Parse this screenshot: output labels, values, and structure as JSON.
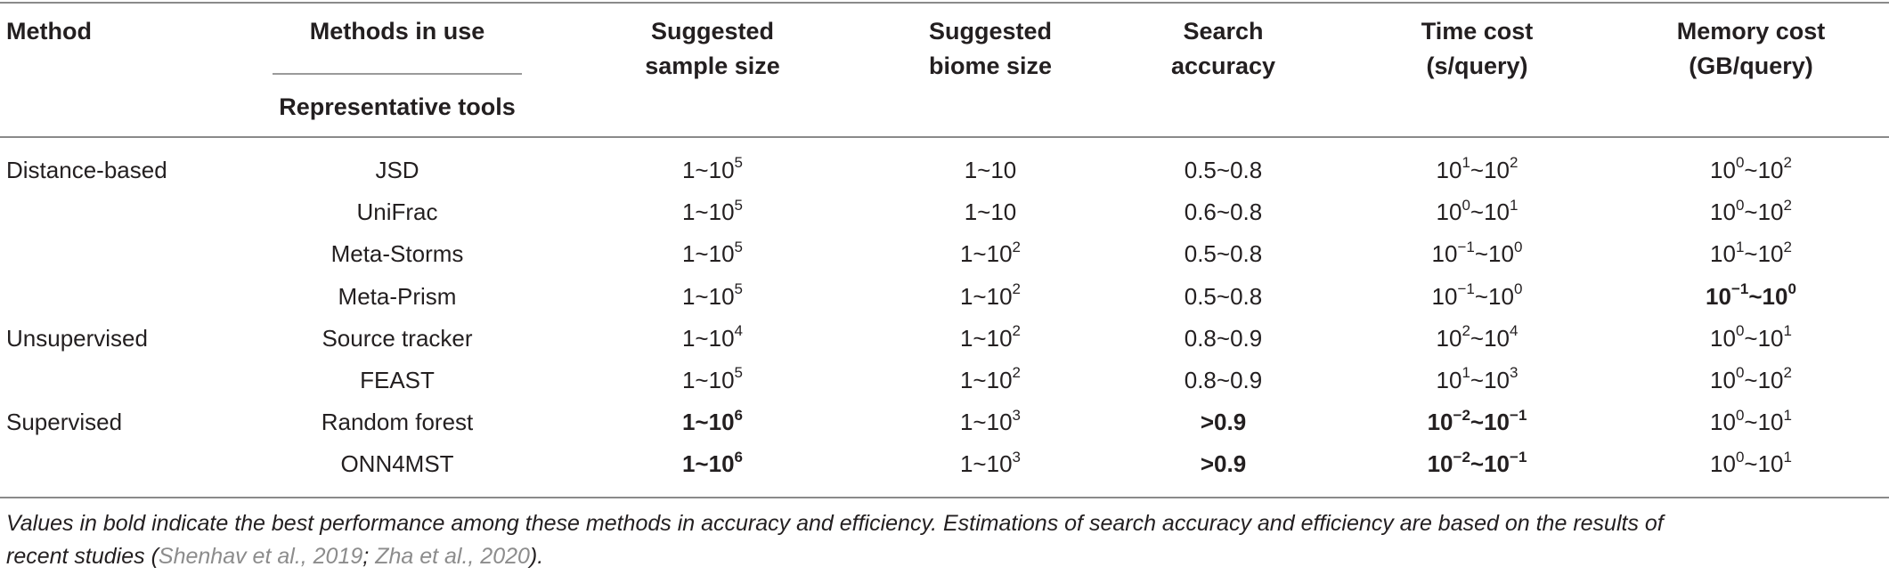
{
  "header": {
    "method": "Method",
    "methods_in_use": "Methods in use",
    "representative_tools": "Representative tools",
    "sample_size_l1": "Suggested",
    "sample_size_l2": "sample size",
    "biome_size_l1": "Suggested",
    "biome_size_l2": "biome size",
    "accuracy_l1": "Search",
    "accuracy_l2": "accuracy",
    "time_l1": "Time cost",
    "time_l2": "(s/query)",
    "memory_l1": "Memory cost",
    "memory_l2": "(GB/query)"
  },
  "rows": [
    {
      "method": "Distance-based",
      "tool": "JSD",
      "sample": {
        "b": "1~10",
        "e": "5",
        "bold": false
      },
      "biome": {
        "b": "1~10",
        "e": "",
        "bold": false
      },
      "accuracy": {
        "text": "0.5~0.8",
        "bold": false
      },
      "time": {
        "a": "10",
        "ae": "1",
        "b": "~10",
        "be": "2",
        "bold": false
      },
      "memory": {
        "a": "10",
        "ae": "0",
        "b": "~10",
        "be": "2",
        "bold": false
      }
    },
    {
      "method": "",
      "tool": "UniFrac",
      "sample": {
        "b": "1~10",
        "e": "5",
        "bold": false
      },
      "biome": {
        "b": "1~10",
        "e": "",
        "bold": false
      },
      "accuracy": {
        "text": "0.6~0.8",
        "bold": false
      },
      "time": {
        "a": "10",
        "ae": "0",
        "b": "~10",
        "be": "1",
        "bold": false
      },
      "memory": {
        "a": "10",
        "ae": "0",
        "b": "~10",
        "be": "2",
        "bold": false
      }
    },
    {
      "method": "",
      "tool": "Meta-Storms",
      "sample": {
        "b": "1~10",
        "e": "5",
        "bold": false
      },
      "biome": {
        "b": "1~10",
        "e": "2",
        "bold": false
      },
      "accuracy": {
        "text": "0.5~0.8",
        "bold": false
      },
      "time": {
        "a": "10",
        "ae": "−1",
        "b": "~10",
        "be": "0",
        "bold": false
      },
      "memory": {
        "a": "10",
        "ae": "1",
        "b": "~10",
        "be": "2",
        "bold": false
      }
    },
    {
      "method": "",
      "tool": "Meta-Prism",
      "sample": {
        "b": "1~10",
        "e": "5",
        "bold": false
      },
      "biome": {
        "b": "1~10",
        "e": "2",
        "bold": false
      },
      "accuracy": {
        "text": "0.5~0.8",
        "bold": false
      },
      "time": {
        "a": "10",
        "ae": "−1",
        "b": "~10",
        "be": "0",
        "bold": false
      },
      "memory": {
        "a": "10",
        "ae": "−1",
        "b": "~10",
        "be": "0",
        "bold": true
      }
    },
    {
      "method": "Unsupervised",
      "tool": "Source tracker",
      "sample": {
        "b": "1~10",
        "e": "4",
        "bold": false
      },
      "biome": {
        "b": "1~10",
        "e": "2",
        "bold": false
      },
      "accuracy": {
        "text": "0.8~0.9",
        "bold": false
      },
      "time": {
        "a": "10",
        "ae": "2",
        "b": "~10",
        "be": "4",
        "bold": false
      },
      "memory": {
        "a": "10",
        "ae": "0",
        "b": "~10",
        "be": "1",
        "bold": false
      }
    },
    {
      "method": "",
      "tool": "FEAST",
      "sample": {
        "b": "1~10",
        "e": "5",
        "bold": false
      },
      "biome": {
        "b": "1~10",
        "e": "2",
        "bold": false
      },
      "accuracy": {
        "text": "0.8~0.9",
        "bold": false
      },
      "time": {
        "a": "10",
        "ae": "1",
        "b": "~10",
        "be": "3",
        "bold": false
      },
      "memory": {
        "a": "10",
        "ae": "0",
        "b": "~10",
        "be": "2",
        "bold": false
      }
    },
    {
      "method": "Supervised",
      "tool": "Random forest",
      "sample": {
        "b": "1~10",
        "e": "6",
        "bold": true
      },
      "biome": {
        "b": "1~10",
        "e": "3",
        "bold": false
      },
      "accuracy": {
        "text": ">0.9",
        "bold": true
      },
      "time": {
        "a": "10",
        "ae": "−2",
        "b": "~10",
        "be": "−1",
        "bold": true
      },
      "memory": {
        "a": "10",
        "ae": "0",
        "b": "~10",
        "be": "1",
        "bold": false
      }
    },
    {
      "method": "",
      "tool": "ONN4MST",
      "sample": {
        "b": "1~10",
        "e": "6",
        "bold": true
      },
      "biome": {
        "b": "1~10",
        "e": "3",
        "bold": false
      },
      "accuracy": {
        "text": ">0.9",
        "bold": true
      },
      "time": {
        "a": "10",
        "ae": "−2",
        "b": "~10",
        "be": "−1",
        "bold": true
      },
      "memory": {
        "a": "10",
        "ae": "0",
        "b": "~10",
        "be": "1",
        "bold": false
      }
    }
  ],
  "footnote": {
    "line1": "Values in bold indicate the best performance among these methods in accuracy and efficiency. Estimations of search accuracy and efficiency are based on the results of",
    "line2_pre": "recent studies (",
    "cite1": "Shenhav et al., 2019",
    "sep": "; ",
    "cite2": "Zha et al., 2020",
    "line2_post": ")."
  }
}
